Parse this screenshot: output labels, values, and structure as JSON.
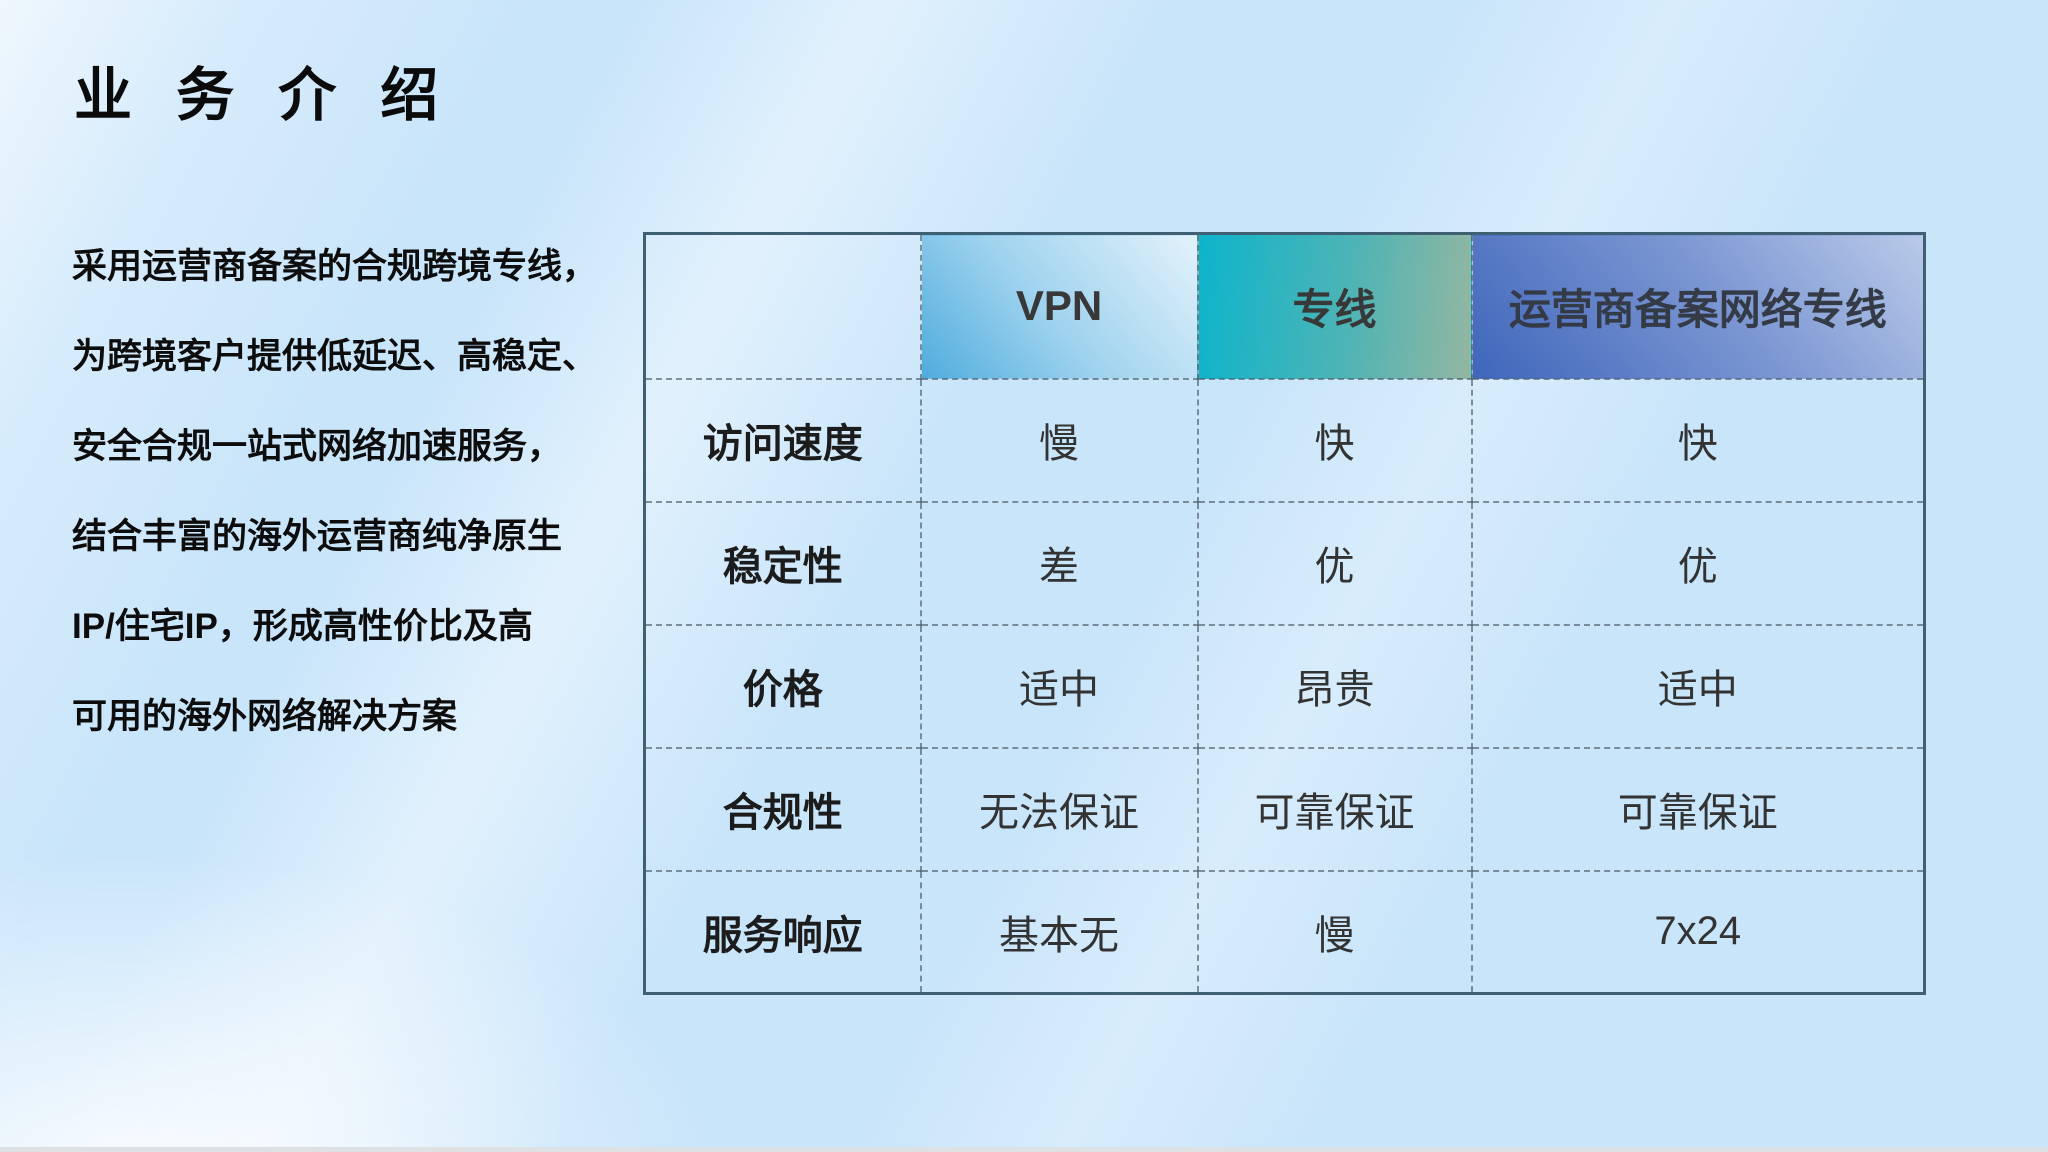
{
  "slide": {
    "title": "业 务 介 绍",
    "description_lines": [
      "采用运营商备案的合规跨境专线，",
      "为跨境客户提供低延迟、高稳定、",
      "安全合规一站式网络加速服务，",
      "结合丰富的海外运营商纯净原生",
      "IP/住宅IP，形成高性价比及高",
      "可用的海外网络解决方案"
    ]
  },
  "comparison_table": {
    "column_headers": [
      "",
      "VPN",
      "专线",
      "运营商备案网络专线"
    ],
    "rows": [
      {
        "label": "访问速度",
        "values": [
          "慢",
          "快",
          "快"
        ]
      },
      {
        "label": "稳定性",
        "values": [
          "差",
          "优",
          "优"
        ]
      },
      {
        "label": "价格",
        "values": [
          "适中",
          "昂贵",
          "适中"
        ]
      },
      {
        "label": "合规性",
        "values": [
          "无法保证",
          "可靠保证",
          "可靠保证"
        ]
      },
      {
        "label": "服务响应",
        "values": [
          "基本无",
          "慢",
          "7x24"
        ]
      }
    ]
  },
  "colors": {
    "background": "#c9e5fa",
    "table_frame": "#3f5f72",
    "grid_line": "#4b5c69",
    "vpn_header_gradient_start": "#4facdd",
    "vpn_header_gradient_end": "#e3f2fb",
    "dedicated_header_gradient_start": "#0db4cc",
    "dedicated_header_gradient_end": "#93b6a1",
    "carrier_header_gradient_start": "#3f66bb",
    "carrier_header_gradient_end": "#b9cae9",
    "title_text": "#0b0b0b",
    "table_text": "#333333"
  }
}
